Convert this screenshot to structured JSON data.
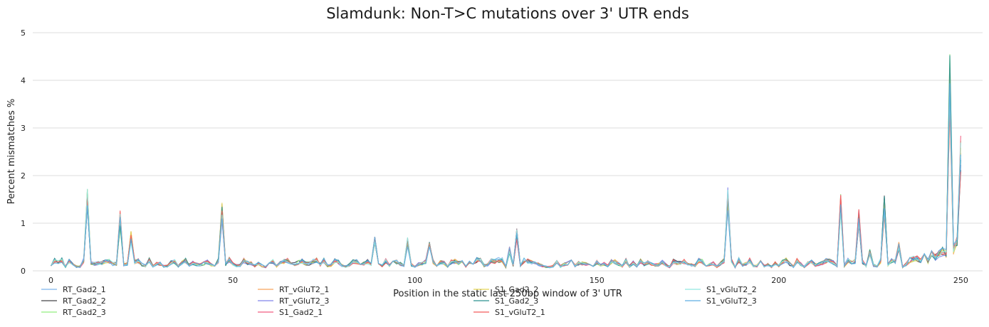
{
  "chart_data": {
    "type": "line",
    "title": "Slamdunk: Non-T>C mutations over 3' UTR ends",
    "xlabel": "Position in the static last 250bp window of 3' UTR",
    "ylabel": "Percent mismatches %",
    "xlim": [
      -5,
      256
    ],
    "ylim": [
      0,
      5
    ],
    "xticks": [
      0,
      50,
      100,
      150,
      200,
      250
    ],
    "yticks": [
      0,
      1,
      2,
      3,
      4,
      5
    ],
    "grid": "horizontal",
    "legend": "bottom",
    "spikes": [
      {
        "x": 10,
        "y": 1.75
      },
      {
        "x": 19,
        "y": 1.27
      },
      {
        "x": 22,
        "y": 0.84
      },
      {
        "x": 47,
        "y": 1.48
      },
      {
        "x": 89,
        "y": 0.75
      },
      {
        "x": 98,
        "y": 0.71
      },
      {
        "x": 104,
        "y": 0.66
      },
      {
        "x": 126,
        "y": 0.52
      },
      {
        "x": 128,
        "y": 0.91
      },
      {
        "x": 186,
        "y": 1.78
      },
      {
        "x": 217,
        "y": 1.73
      },
      {
        "x": 222,
        "y": 1.35
      },
      {
        "x": 225,
        "y": 0.47
      },
      {
        "x": 229,
        "y": 1.61
      },
      {
        "x": 233,
        "y": 0.61
      },
      {
        "x": 247,
        "y": 4.8
      },
      {
        "x": 249,
        "y": 0.75
      },
      {
        "x": 250,
        "y": 2.88
      }
    ],
    "series": [
      {
        "name": "RT_Gad2_1",
        "color": "#7cb5ec"
      },
      {
        "name": "RT_Gad2_2",
        "color": "#434348"
      },
      {
        "name": "RT_Gad2_3",
        "color": "#90ed7d"
      },
      {
        "name": "RT_vGluT2_1",
        "color": "#f7a35c"
      },
      {
        "name": "RT_vGluT2_3",
        "color": "#8085e9"
      },
      {
        "name": "S1_Gad2_1",
        "color": "#f15c80"
      },
      {
        "name": "S1_Gad2_2",
        "color": "#e4d354"
      },
      {
        "name": "S1_Gad2_3",
        "color": "#2b908f"
      },
      {
        "name": "S1_vGluT2_1",
        "color": "#f45b5b"
      },
      {
        "name": "S1_vGluT2_2",
        "color": "#91e8e1"
      },
      {
        "name": "S1_vGluT2_3",
        "color": "#5dade2"
      }
    ]
  }
}
